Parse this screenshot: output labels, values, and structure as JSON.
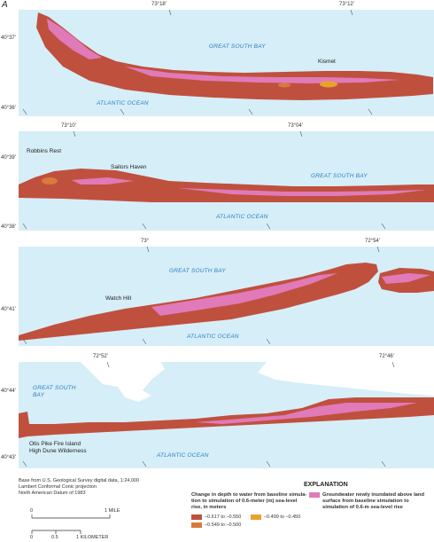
{
  "panel_letter": "A",
  "colors": {
    "water": "#d6eef8",
    "class1": "#c0503e",
    "class2": "#d97a3c",
    "class3": "#e8a32a",
    "inundated": "#e07ab8"
  },
  "panels": [
    {
      "lon_labels": [
        "73°18'",
        "73°12'"
      ],
      "lat_labels": [
        "40°37'",
        "40°36'"
      ],
      "bay_label": "GREAT SOUTH BAY",
      "ocean_label": "ATLANTIC OCEAN",
      "places": [
        "Kismet"
      ]
    },
    {
      "lon_labels": [
        "73°10'",
        "73°04'"
      ],
      "lat_labels": [
        "40°39'",
        "40°38'"
      ],
      "bay_label": "GREAT SOUTH BAY",
      "ocean_label": "ATLANTIC OCEAN",
      "places": [
        "Robbins Rest",
        "Sailors Haven"
      ]
    },
    {
      "lon_labels": [
        "73°",
        "72°54'"
      ],
      "lat_labels": [
        "40°41'"
      ],
      "bay_label": "GREAT SOUTH BAY",
      "ocean_label": "ATLANTIC OCEAN",
      "places": [
        "Watch Hill"
      ]
    },
    {
      "lon_labels": [
        "72°52'",
        "72°46'"
      ],
      "lat_labels": [
        "40°44'",
        "40°43'"
      ],
      "bay_label_1": "GREAT SOUTH",
      "bay_label_2": "BAY",
      "ocean_label": "ATLANTIC OCEAN",
      "places": [
        "Otis Pike Fire Island",
        "High Dune Wilderness"
      ]
    }
  ],
  "credits": [
    "Base from U.S. Geological Survey digital data, 1:24,000",
    "Lambert Conformal Conic projection",
    "North American Datum of 1983"
  ],
  "explanation": {
    "title": "EXPLANATION",
    "change_label": [
      "Change in depth to water from baseline simula-",
      "tion to simulation of 0.6-meter (m) sea-level",
      "rise, in meters"
    ],
    "classes": [
      "–0.617 to –0.550",
      "–0.549 to –0.500",
      "–0.499 to –0.450"
    ],
    "inundated_label": [
      "Groundwater newly inundated above land",
      "surface from baseline simulation to",
      "simulation of 0.6-m sea-level rise"
    ]
  },
  "scale": {
    "mile_ticks": [
      "0",
      "1 MILE"
    ],
    "km_ticks": [
      "0",
      "0.5",
      "1 KILOMETER"
    ]
  }
}
